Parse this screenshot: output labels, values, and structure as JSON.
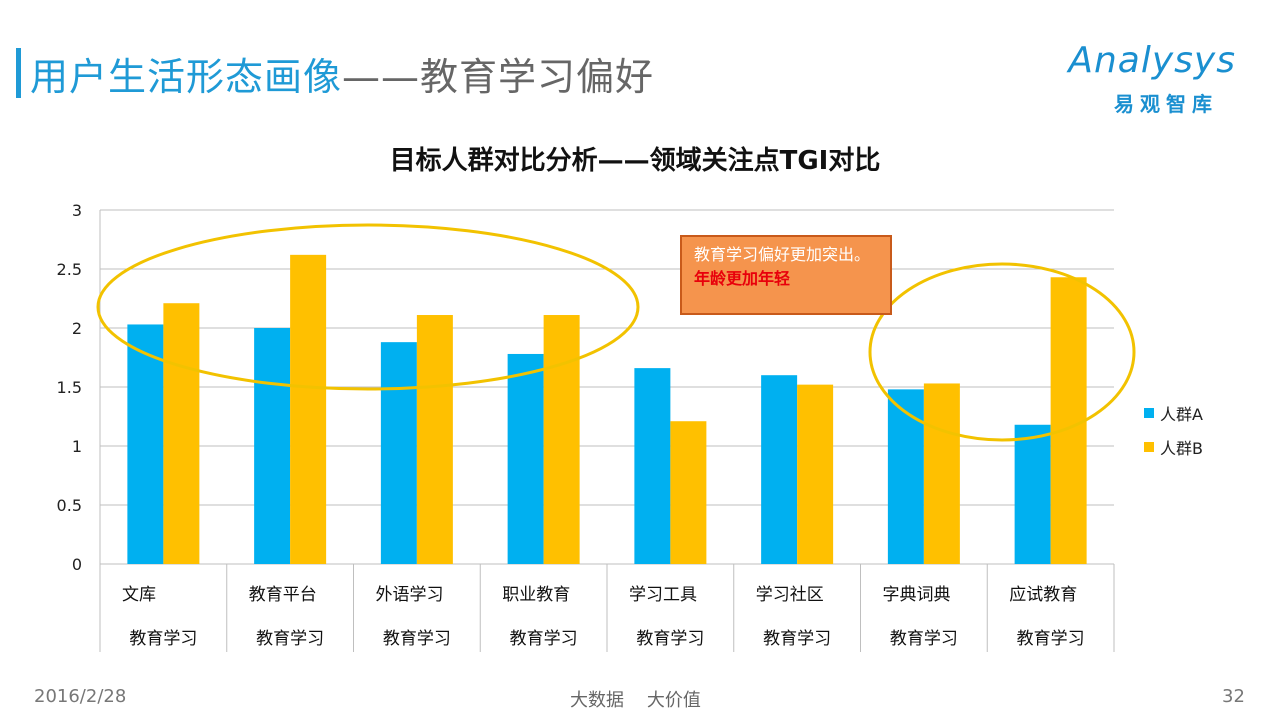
{
  "header": {
    "title_part1": "用户生活形态画像",
    "title_part2": "——教育学习偏好",
    "logo_word": "Analysys",
    "logo_sub": "易观智库"
  },
  "callout": {
    "text_normal": "教育学习偏好更加突出。",
    "text_highlight": "年龄更加年轻"
  },
  "footer": {
    "date": "2016/2/28",
    "center": "大数据    大价值",
    "page": "32"
  },
  "colors": {
    "series_a": "#00b0f0",
    "series_b": "#ffc000",
    "ellipse": "#f2c200",
    "grid": "#bfbfbf"
  },
  "chart_data": {
    "type": "bar",
    "title": "目标人群对比分析——领域关注点TGI对比",
    "categories": [
      "文库",
      "教育平台",
      "外语学习",
      "职业教育",
      "学习工具",
      "学习社区",
      "字典词典",
      "应试教育"
    ],
    "category_group": "教育学习",
    "series": [
      {
        "name": "人群A",
        "values": [
          2.03,
          2.0,
          1.88,
          1.78,
          1.66,
          1.6,
          1.48,
          1.18
        ]
      },
      {
        "name": "人群B",
        "values": [
          2.21,
          2.62,
          2.11,
          2.11,
          1.21,
          1.52,
          1.53,
          2.43
        ]
      }
    ],
    "yticks": [
      "0",
      "0.5",
      "1",
      "1.5",
      "2",
      "2.5",
      "3"
    ],
    "ylim": [
      0,
      3
    ],
    "grid": true,
    "legend_position": "right"
  }
}
